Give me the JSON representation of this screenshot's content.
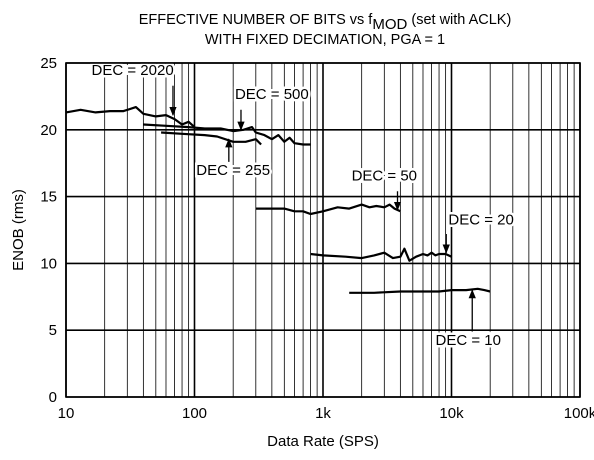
{
  "chart_data": {
    "type": "line",
    "title_line1_main": "EFFECTIVE NUMBER OF BITS vs f",
    "title_line1_sub": "MOD",
    "title_line1_tail": " (set with ACLK)",
    "title_line2": "WITH FIXED DECIMATION, PGA = 1",
    "xlabel": "Data Rate (SPS)",
    "ylabel": "ENOB (rms)",
    "x_scale": "log",
    "xlim": [
      10,
      100000
    ],
    "ylim": [
      0,
      25
    ],
    "x_tick_labels": [
      {
        "value": 10,
        "label": "10"
      },
      {
        "value": 100,
        "label": "100"
      },
      {
        "value": 1000,
        "label": "1k"
      },
      {
        "value": 10000,
        "label": "10k"
      },
      {
        "value": 100000,
        "label": "100k"
      }
    ],
    "y_tick_labels": [
      {
        "value": 0,
        "label": "0"
      },
      {
        "value": 5,
        "label": "5"
      },
      {
        "value": 10,
        "label": "10"
      },
      {
        "value": 15,
        "label": "15"
      },
      {
        "value": 20,
        "label": "20"
      },
      {
        "value": 25,
        "label": "25"
      }
    ],
    "grid": true,
    "series": [
      {
        "name": "DEC = 2020",
        "color": "#000000",
        "points": [
          [
            10,
            21.3
          ],
          [
            13,
            21.5
          ],
          [
            17,
            21.3
          ],
          [
            22,
            21.4
          ],
          [
            28,
            21.4
          ],
          [
            35,
            21.7
          ],
          [
            40,
            21.2
          ],
          [
            50,
            21.0
          ],
          [
            60,
            21.1
          ],
          [
            70,
            20.8
          ],
          [
            80,
            20.4
          ],
          [
            90,
            20.6
          ],
          [
            100,
            20.2
          ]
        ]
      },
      {
        "name": "DEC = 500",
        "color": "#000000",
        "points": [
          [
            40,
            20.4
          ],
          [
            60,
            20.3
          ],
          [
            90,
            20.2
          ],
          [
            120,
            20.1
          ],
          [
            160,
            20.1
          ],
          [
            200,
            19.9
          ],
          [
            240,
            20.0
          ],
          [
            280,
            20.2
          ],
          [
            300,
            19.8
          ],
          [
            350,
            19.6
          ],
          [
            400,
            19.3
          ],
          [
            450,
            19.6
          ],
          [
            500,
            19.1
          ],
          [
            550,
            19.4
          ],
          [
            600,
            19.0
          ],
          [
            700,
            18.9
          ],
          [
            800,
            18.9
          ]
        ]
      },
      {
        "name": "DEC = 255",
        "color": "#000000",
        "points": [
          [
            55,
            19.8
          ],
          [
            80,
            19.7
          ],
          [
            120,
            19.6
          ],
          [
            150,
            19.5
          ],
          [
            200,
            19.1
          ],
          [
            250,
            19.1
          ],
          [
            300,
            19.3
          ],
          [
            330,
            18.9
          ]
        ]
      },
      {
        "name": "DEC = 50",
        "color": "#000000",
        "points": [
          [
            300,
            14.1
          ],
          [
            400,
            14.1
          ],
          [
            500,
            14.1
          ],
          [
            600,
            13.9
          ],
          [
            700,
            13.9
          ],
          [
            800,
            13.7
          ],
          [
            1000,
            13.9
          ],
          [
            1300,
            14.2
          ],
          [
            1600,
            14.1
          ],
          [
            2000,
            14.4
          ],
          [
            2300,
            14.2
          ],
          [
            2600,
            14.3
          ],
          [
            3000,
            14.2
          ],
          [
            3300,
            14.4
          ],
          [
            3600,
            14.1
          ],
          [
            4000,
            13.9
          ]
        ]
      },
      {
        "name": "DEC = 20",
        "color": "#000000",
        "points": [
          [
            800,
            10.7
          ],
          [
            1000,
            10.6
          ],
          [
            1500,
            10.5
          ],
          [
            2000,
            10.4
          ],
          [
            2500,
            10.6
          ],
          [
            3000,
            10.8
          ],
          [
            3500,
            10.4
          ],
          [
            4000,
            10.5
          ],
          [
            4300,
            11.1
          ],
          [
            4700,
            10.2
          ],
          [
            5300,
            10.5
          ],
          [
            6000,
            10.7
          ],
          [
            6500,
            10.6
          ],
          [
            7000,
            10.8
          ],
          [
            7500,
            10.6
          ],
          [
            8000,
            10.7
          ],
          [
            9000,
            10.7
          ],
          [
            10000,
            10.5
          ]
        ]
      },
      {
        "name": "DEC = 10",
        "color": "#000000",
        "points": [
          [
            1600,
            7.8
          ],
          [
            2500,
            7.8
          ],
          [
            4000,
            7.9
          ],
          [
            6000,
            7.9
          ],
          [
            8000,
            7.9
          ],
          [
            10000,
            8.0
          ],
          [
            13000,
            8.0
          ],
          [
            16000,
            8.1
          ],
          [
            18000,
            8.0
          ],
          [
            20000,
            7.9
          ]
        ]
      }
    ],
    "annotations": [
      {
        "text": "DEC = 2020",
        "x": 33,
        "y": 24.1,
        "anchor": "middle",
        "arrow_from": [
          68,
          23.3
        ],
        "arrow_to": [
          68,
          21.1
        ]
      },
      {
        "text": "DEC = 500",
        "x": 400,
        "y": 22.3,
        "anchor": "middle",
        "arrow_from": [
          230,
          21.5
        ],
        "arrow_to": [
          230,
          20.0
        ]
      },
      {
        "text": "DEC = 255",
        "x": 200,
        "y": 16.6,
        "anchor": "middle",
        "arrow_from": [
          185,
          17.6
        ],
        "arrow_to": [
          185,
          19.3
        ]
      },
      {
        "text": "DEC = 50",
        "x": 3000,
        "y": 16.2,
        "anchor": "middle",
        "arrow_from": [
          3800,
          15.4
        ],
        "arrow_to": [
          3800,
          14.0
        ]
      },
      {
        "text": "DEC = 20",
        "x": 17000,
        "y": 12.9,
        "anchor": "middle",
        "arrow_from": [
          9100,
          12.2
        ],
        "arrow_to": [
          9100,
          10.8
        ]
      },
      {
        "text": "DEC = 10",
        "x": 13500,
        "y": 3.9,
        "anchor": "middle",
        "arrow_from": [
          14500,
          4.9
        ],
        "arrow_to": [
          14500,
          8.0
        ]
      }
    ]
  }
}
